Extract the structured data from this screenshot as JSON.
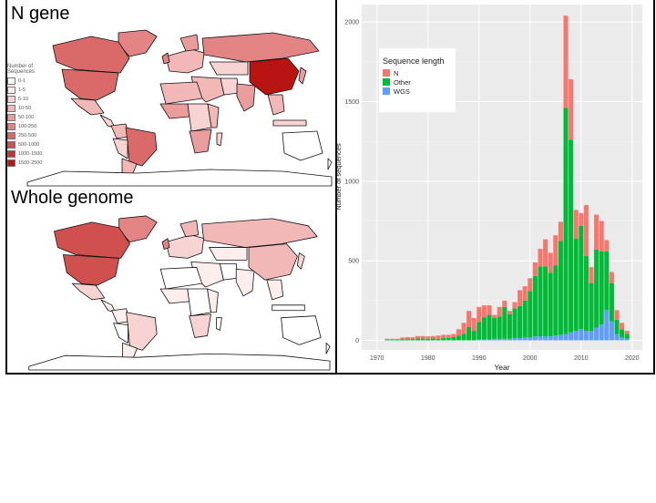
{
  "panels": {
    "n_gene_title": "N gene",
    "whole_genome_title": "Whole genome"
  },
  "map_legend": {
    "title_line1": "Number of",
    "title_line2": "Sequences",
    "bins": [
      {
        "label": "0-1",
        "color": "#ffffff"
      },
      {
        "label": "1-5",
        "color": "#fdeeee"
      },
      {
        "label": "5-10",
        "color": "#f8d3d3"
      },
      {
        "label": "10-50",
        "color": "#f2b8b8"
      },
      {
        "label": "50-100",
        "color": "#eb9c9c"
      },
      {
        "label": "100-250",
        "color": "#e38484"
      },
      {
        "label": "250-500",
        "color": "#da6a6a"
      },
      {
        "label": "500-1000",
        "color": "#d05050"
      },
      {
        "label": "1000-1500",
        "color": "#c63333"
      },
      {
        "label": "1500-2500",
        "color": "#b81414"
      }
    ]
  },
  "chart_data": {
    "type": "bar",
    "stacked": true,
    "xlabel": "Year",
    "ylabel": "Number of sequences",
    "xlim": [
      1967,
      2022
    ],
    "ylim": [
      -60,
      2110
    ],
    "x_ticks": [
      1970,
      1980,
      1990,
      2000,
      2010,
      2020
    ],
    "y_ticks": [
      0,
      500,
      1000,
      1500,
      2000
    ],
    "grid": true,
    "legend_position": "top-left",
    "legend_title": "Sequence length",
    "x": [
      1972,
      1973,
      1974,
      1975,
      1976,
      1977,
      1978,
      1979,
      1980,
      1981,
      1982,
      1983,
      1984,
      1985,
      1986,
      1987,
      1988,
      1989,
      1990,
      1991,
      1992,
      1993,
      1994,
      1995,
      1996,
      1997,
      1998,
      1999,
      2000,
      2001,
      2002,
      2003,
      2004,
      2005,
      2006,
      2007,
      2008,
      2009,
      2010,
      2011,
      2012,
      2013,
      2014,
      2015,
      2016,
      2017,
      2018,
      2019
    ],
    "series": [
      {
        "name": "WGS",
        "color": "#619cff",
        "values": [
          0,
          0,
          0,
          0,
          0,
          0,
          0,
          0,
          0,
          0,
          0,
          0,
          0,
          0,
          0,
          0,
          0,
          0,
          5,
          5,
          5,
          10,
          10,
          10,
          10,
          15,
          15,
          20,
          20,
          25,
          25,
          25,
          25,
          30,
          35,
          40,
          50,
          60,
          70,
          60,
          60,
          80,
          100,
          190,
          120,
          40,
          20,
          10
        ]
      },
      {
        "name": "Other",
        "color": "#00ba38",
        "values": [
          5,
          5,
          5,
          8,
          8,
          10,
          12,
          12,
          10,
          12,
          10,
          15,
          15,
          20,
          30,
          40,
          85,
          60,
          110,
          140,
          155,
          130,
          140,
          200,
          155,
          185,
          200,
          230,
          290,
          380,
          440,
          440,
          400,
          440,
          590,
          1420,
          1210,
          580,
          650,
          470,
          300,
          490,
          460,
          370,
          240,
          90,
          50,
          30
        ]
      },
      {
        "name": "N",
        "color": "#f8766d",
        "values": [
          5,
          5,
          5,
          10,
          12,
          10,
          15,
          15,
          15,
          15,
          20,
          20,
          20,
          20,
          40,
          70,
          100,
          80,
          95,
          75,
          60,
          20,
          60,
          40,
          20,
          40,
          100,
          90,
          80,
          85,
          110,
          170,
          125,
          190,
          120,
          580,
          380,
          180,
          80,
          320,
          100,
          220,
          190,
          70,
          70,
          60,
          40,
          20
        ]
      }
    ]
  }
}
